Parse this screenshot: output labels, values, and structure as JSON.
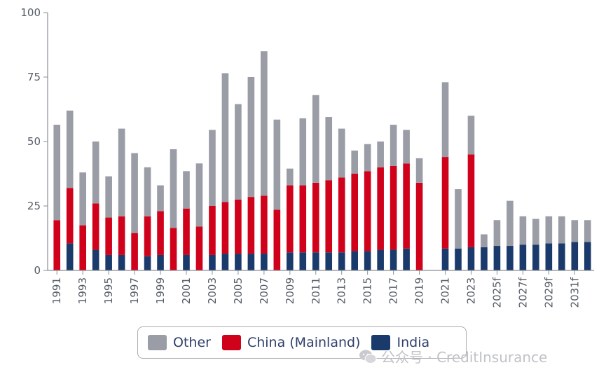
{
  "chart_data": {
    "type": "bar",
    "stacked": true,
    "categories": [
      "1991",
      "1992",
      "1993",
      "1994",
      "1995",
      "1996",
      "1997",
      "1998",
      "1999",
      "2000",
      "2001",
      "2002",
      "2003",
      "2004",
      "2005",
      "2006",
      "2007",
      "2008",
      "2009",
      "2010",
      "2011",
      "2012",
      "2013",
      "2014",
      "2015",
      "2016",
      "2017",
      "2018",
      "2019",
      "2020",
      "2021",
      "2022",
      "2023",
      "2024f",
      "2025f",
      "2026f",
      "2027f",
      "2028f",
      "2029f",
      "2030f",
      "2031f",
      "2032f"
    ],
    "tick_labels": [
      "1991",
      "1993",
      "1995",
      "1997",
      "1999",
      "2001",
      "2003",
      "2005",
      "2007",
      "2009",
      "2011",
      "2013",
      "2015",
      "2017",
      "2019",
      "2021",
      "2023",
      "2025f",
      "2027f",
      "2029f",
      "2031f"
    ],
    "series": [
      {
        "name": "India",
        "color": "#1a3a6b",
        "values": [
          0,
          10.5,
          0,
          8,
          6,
          6,
          0,
          5.5,
          6,
          0,
          6,
          0,
          6,
          6.5,
          6.5,
          6.5,
          6.5,
          0,
          7,
          7,
          7,
          7,
          7,
          7.5,
          7.5,
          8,
          8,
          8.5,
          0,
          0,
          8.5,
          8.5,
          9,
          9,
          9.5,
          9.5,
          10,
          10,
          10.5,
          10.5,
          11,
          11
        ]
      },
      {
        "name": "China (Mainland)",
        "color": "#d0021b",
        "values": [
          19.5,
          21.5,
          17.5,
          18,
          14.5,
          15,
          14.5,
          15.5,
          17,
          16.5,
          18,
          17,
          19,
          20,
          21,
          22,
          22.5,
          23.5,
          26,
          26,
          27,
          28,
          29,
          30,
          31,
          32,
          32.5,
          33,
          34,
          0,
          35.5,
          0,
          36,
          0,
          0,
          0,
          0,
          0,
          0,
          0,
          0,
          0
        ]
      },
      {
        "name": "Other",
        "color": "#9a9ca6",
        "values": [
          37,
          30,
          20.5,
          24,
          16,
          34,
          31,
          19,
          10,
          30.5,
          14.5,
          24.5,
          29.5,
          50,
          37,
          46.5,
          56,
          35,
          6.5,
          26,
          34,
          24.5,
          19,
          9,
          10.5,
          10,
          16,
          13,
          9.5,
          0,
          29,
          23,
          15,
          5,
          10,
          17.5,
          11,
          10,
          10.5,
          10.5,
          8.5,
          8.5
        ]
      }
    ],
    "ylim": [
      0,
      100
    ],
    "yticks": [
      0,
      25,
      50,
      75,
      100
    ],
    "grid": false,
    "legend_position": "bottom"
  },
  "legend": {
    "items": [
      {
        "label": "Other",
        "color": "#9a9ca6"
      },
      {
        "label": "China (Mainland)",
        "color": "#d0021b"
      },
      {
        "label": "India",
        "color": "#1a3a6b"
      }
    ]
  },
  "watermark": {
    "text": "公众号 · CreditInsurance"
  }
}
